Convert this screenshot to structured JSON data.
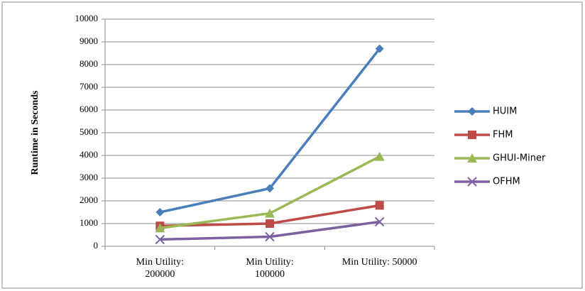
{
  "chart_data": {
    "type": "line",
    "y_label": "Runtime in Seconds",
    "categories": [
      "Min Utility: 200000",
      "Min Utility: 100000",
      "Min Utility: 50000"
    ],
    "series": [
      {
        "name": "HUIM",
        "color": "#4a7ebb",
        "marker": "diamond",
        "values": [
          1500,
          2550,
          8700
        ]
      },
      {
        "name": "FHM",
        "color": "#be4b48",
        "marker": "square",
        "values": [
          900,
          1000,
          1800
        ]
      },
      {
        "name": "GHUI-Miner",
        "color": "#98b954",
        "marker": "triangle",
        "values": [
          800,
          1450,
          3950
        ]
      },
      {
        "name": "OFHM",
        "color": "#7d60a0",
        "marker": "x",
        "values": [
          300,
          420,
          1080
        ]
      }
    ],
    "ylim": [
      0,
      10000
    ],
    "yticks": [
      0,
      1000,
      2000,
      3000,
      4000,
      5000,
      6000,
      7000,
      8000,
      9000,
      10000
    ],
    "grid": true,
    "legend": "right"
  }
}
